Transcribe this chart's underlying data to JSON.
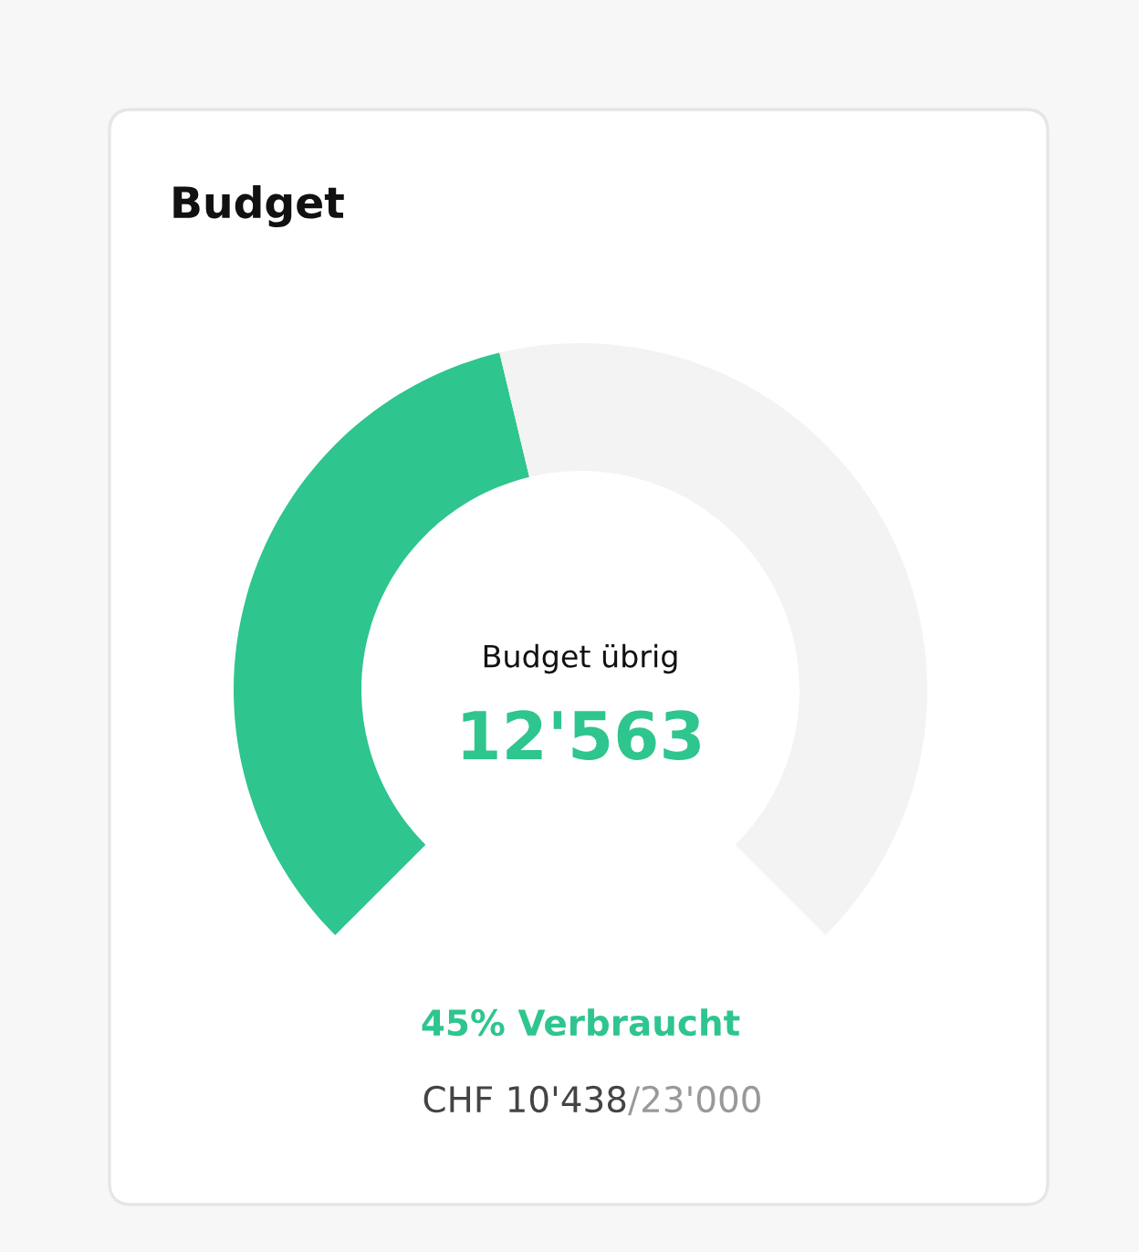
{
  "chart_data": {
    "type": "donut",
    "title": "Budget",
    "categories": [
      null,
      null
    ],
    "values": [
      45,
      55
    ],
    "colors": [
      "#2ec58e",
      "#f3f3f3"
    ],
    "annotations": [
      "Budget übrig",
      "12'563",
      "45% Verbraucht",
      "CHF 10'438",
      "/23'000"
    ]
  }
}
